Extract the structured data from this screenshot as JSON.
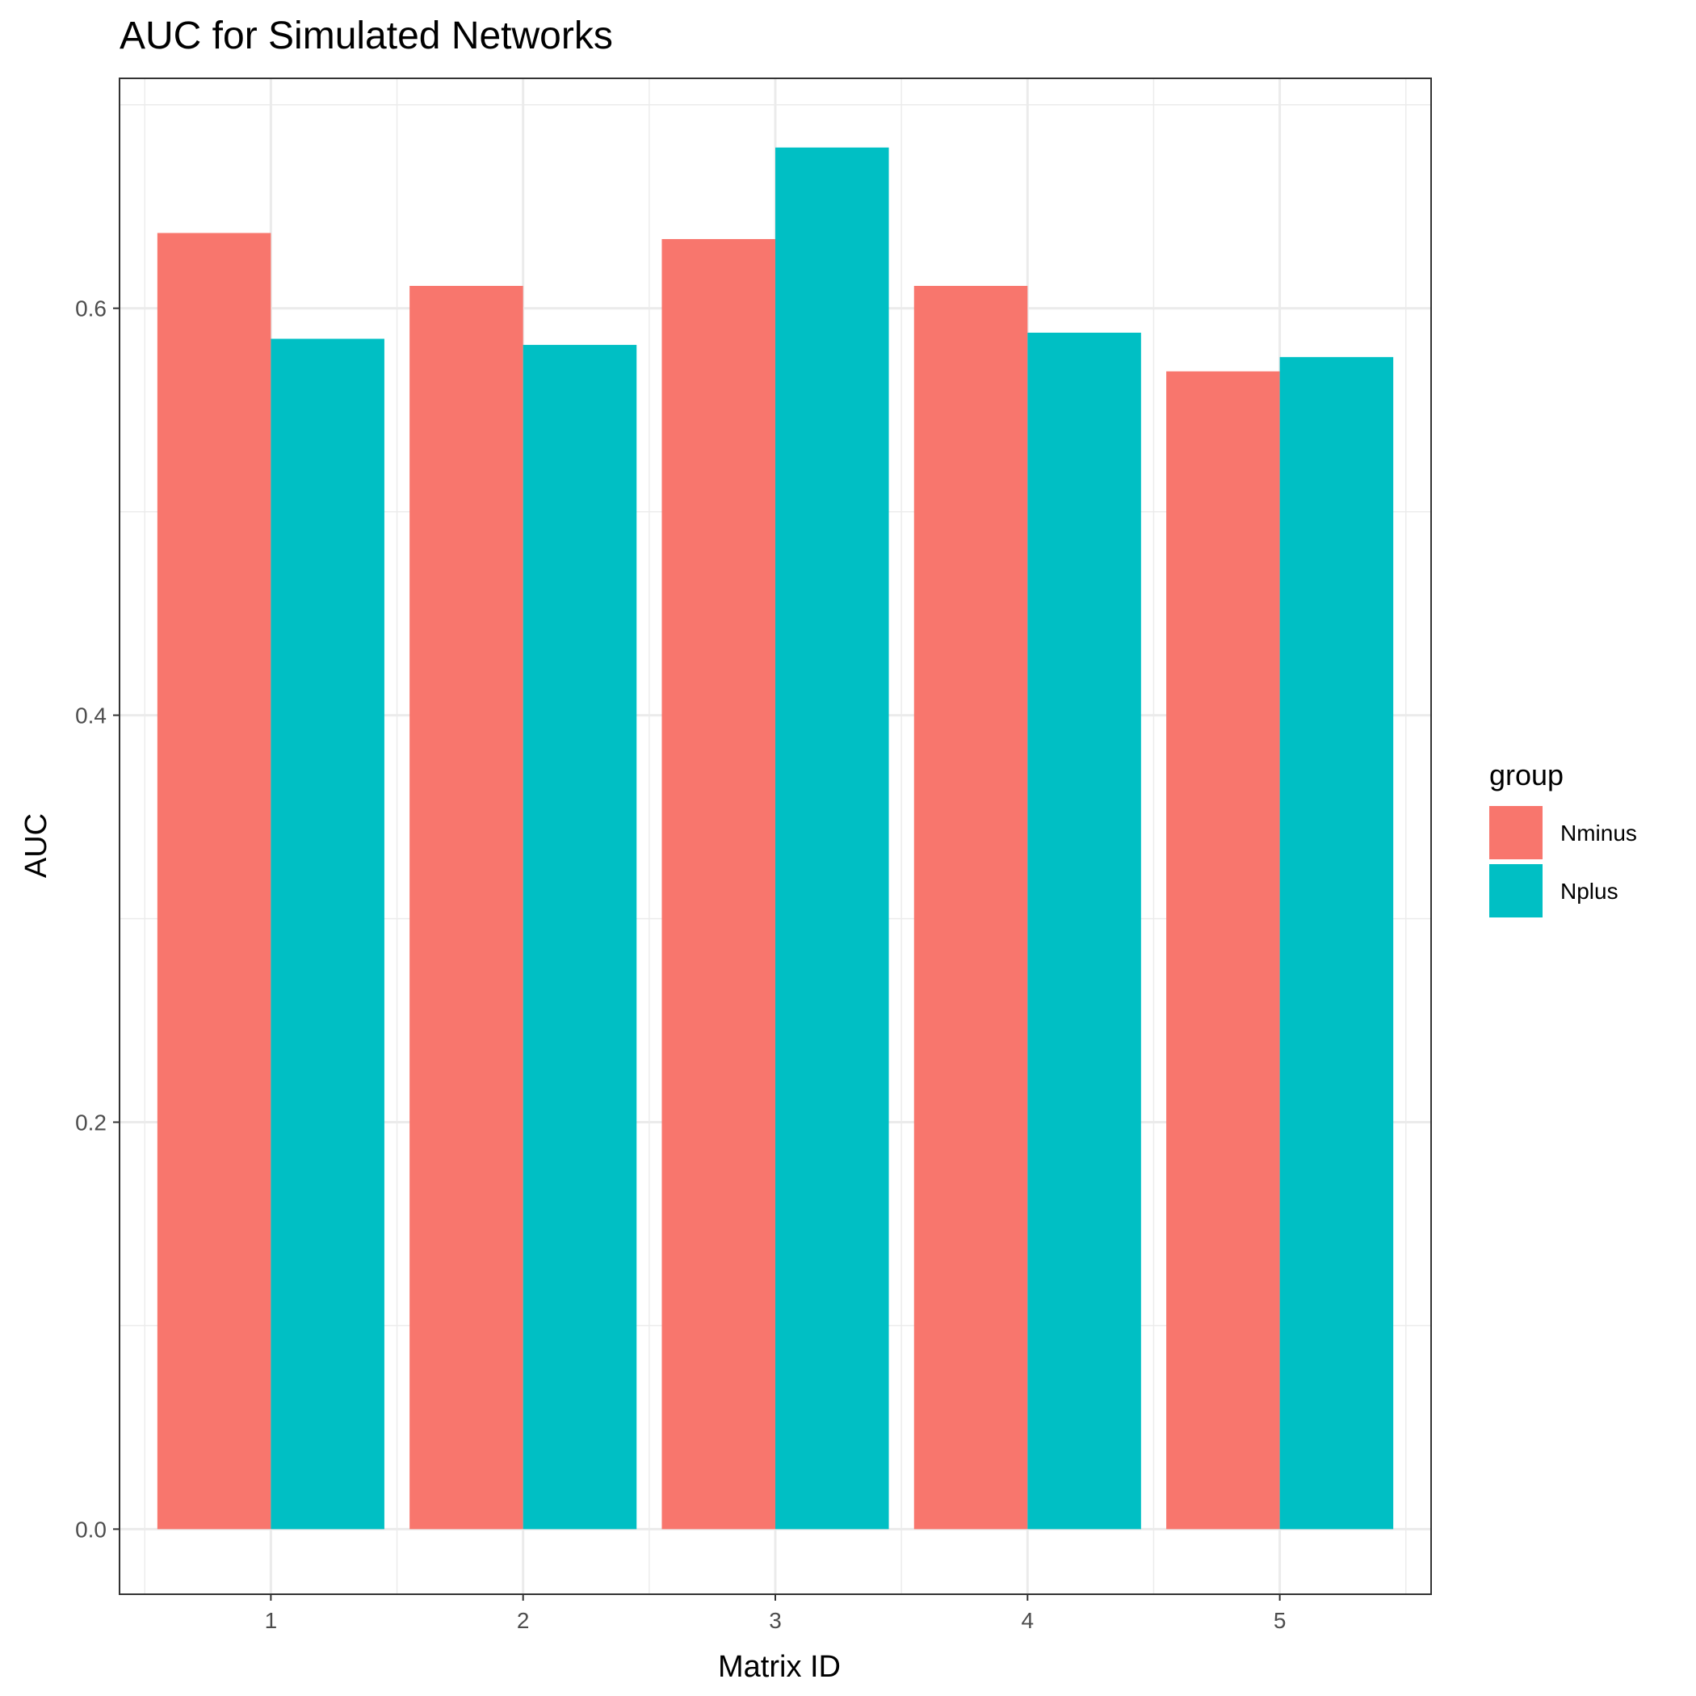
{
  "chart_data": {
    "type": "bar",
    "title": "AUC for Simulated Networks",
    "xlabel": "Matrix ID",
    "ylabel": "AUC",
    "categories": [
      "1",
      "2",
      "3",
      "4",
      "5"
    ],
    "series": [
      {
        "name": "Nminus",
        "color": "#F8766D",
        "values": [
          0.637,
          0.611,
          0.634,
          0.611,
          0.569
        ]
      },
      {
        "name": "Nplus",
        "color": "#00BFC4",
        "values": [
          0.585,
          0.582,
          0.679,
          0.588,
          0.576
        ]
      }
    ],
    "ylim": [
      -0.032,
      0.713
    ],
    "yticks": [
      0.0,
      0.2,
      0.4,
      0.6
    ],
    "ytick_labels": [
      "0.0",
      "0.2",
      "0.4",
      "0.6"
    ],
    "grid": true,
    "legend": {
      "title": "group",
      "position": "right"
    }
  }
}
